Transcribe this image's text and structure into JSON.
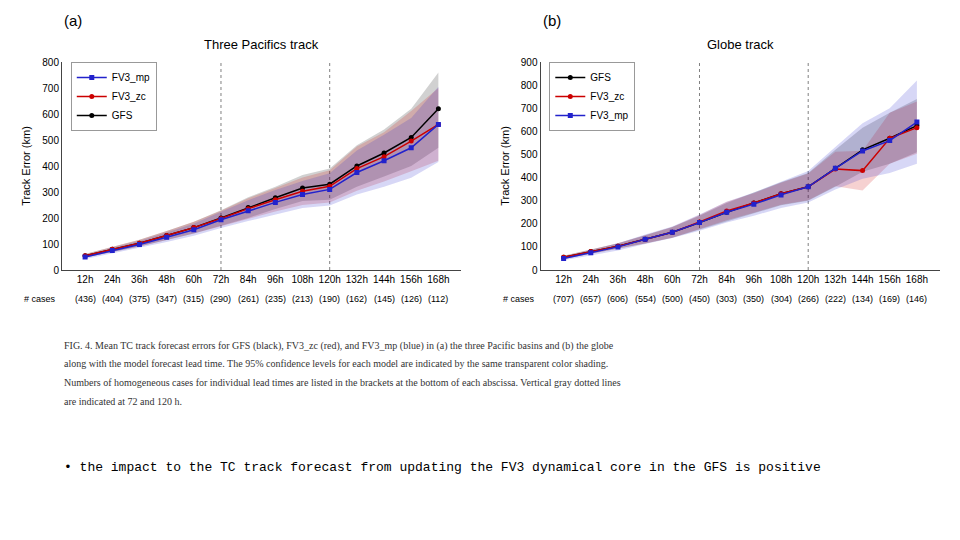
{
  "chart_data": [
    {
      "type": "line",
      "title": "Three Pacifics track",
      "ylabel": "Track Error (km)",
      "annotations": [
        "(a)"
      ],
      "categories": [
        "12h",
        "24h",
        "36h",
        "48h",
        "60h",
        "72h",
        "84h",
        "96h",
        "108h",
        "120h",
        "132h",
        "144h",
        "156h",
        "168h"
      ],
      "cases": {
        "title": "# cases",
        "values": [
          436,
          404,
          375,
          347,
          315,
          290,
          261,
          235,
          213,
          190,
          162,
          145,
          126,
          112
        ],
        "value_labels": [
          "(436)",
          "(404)",
          "(375)",
          "(347)",
          "(315)",
          "(290)",
          "(261)",
          "(235)",
          "(213)",
          "(190)",
          "(162)",
          "(145)",
          "(126)",
          "(112)"
        ]
      },
      "series": [
        {
          "name": "GFS",
          "color": "#000000",
          "marker": "circle",
          "line_style": "solid",
          "values": [
            55,
            80,
            103,
            133,
            163,
            200,
            240,
            278,
            315,
            330,
            400,
            450,
            510,
            620
          ],
          "lower": [
            48,
            70,
            90,
            115,
            140,
            170,
            200,
            235,
            265,
            270,
            320,
            360,
            400,
            470
          ],
          "upper": [
            62,
            90,
            116,
            150,
            186,
            230,
            280,
            320,
            365,
            390,
            480,
            540,
            620,
            760
          ]
        },
        {
          "name": "FV3_zc",
          "color": "#cc0000",
          "marker": "circle",
          "line_style": "solid",
          "values": [
            55,
            80,
            103,
            133,
            163,
            198,
            236,
            270,
            303,
            322,
            390,
            436,
            496,
            560
          ],
          "lower": [
            48,
            70,
            90,
            115,
            140,
            168,
            196,
            225,
            250,
            260,
            305,
            340,
            380,
            420
          ],
          "upper": [
            62,
            90,
            116,
            150,
            186,
            228,
            276,
            315,
            356,
            384,
            475,
            530,
            612,
            700
          ]
        },
        {
          "name": "FV3_mp",
          "color": "#2222cc",
          "marker": "square",
          "line_style": "solid",
          "values": [
            50,
            75,
            98,
            126,
            155,
            193,
            228,
            260,
            290,
            310,
            375,
            420,
            470,
            560
          ],
          "lower": [
            42,
            64,
            84,
            108,
            132,
            162,
            188,
            212,
            238,
            248,
            290,
            320,
            355,
            415
          ],
          "upper": [
            58,
            86,
            112,
            144,
            178,
            224,
            268,
            308,
            342,
            372,
            460,
            520,
            585,
            705
          ]
        }
      ],
      "vlines": [
        "72h",
        "120h"
      ],
      "ylim": [
        0,
        800
      ],
      "yticks": [
        0,
        100,
        200,
        300,
        400,
        500,
        600,
        700,
        800
      ],
      "grid": false,
      "legend": "upper left"
    },
    {
      "type": "line",
      "title": "Globe track",
      "ylabel": "Track Error (km)",
      "annotations": [
        "(b)"
      ],
      "categories": [
        "12h",
        "24h",
        "36h",
        "48h",
        "60h",
        "72h",
        "84h",
        "96h",
        "108h",
        "120h",
        "132h",
        "144h",
        "156h",
        "168h"
      ],
      "cases": {
        "title": "# cases",
        "values": [
          707,
          657,
          606,
          554,
          500,
          450,
          303,
          350,
          304,
          266,
          222,
          134,
          169,
          146
        ],
        "value_labels": [
          "(707)",
          "(657)",
          "(606)",
          "(554)",
          "(500)",
          "(450)",
          "(303)",
          "(350)",
          "(304)",
          "(266)",
          "(222)",
          "(134)",
          "(169)",
          "(146)"
        ]
      },
      "series": [
        {
          "name": "GFS",
          "color": "#000000",
          "marker": "circle",
          "line_style": "solid",
          "values": [
            55,
            80,
            103,
            133,
            163,
            205,
            250,
            290,
            330,
            360,
            440,
            520,
            570,
            625
          ],
          "lower": [
            48,
            70,
            90,
            115,
            140,
            175,
            210,
            245,
            280,
            300,
            360,
            425,
            460,
            510
          ],
          "upper": [
            62,
            90,
            116,
            150,
            186,
            235,
            290,
            335,
            380,
            420,
            520,
            615,
            680,
            740
          ]
        },
        {
          "name": "FV3_zc",
          "color": "#cc0000",
          "marker": "circle",
          "line_style": "solid",
          "values": [
            55,
            80,
            103,
            133,
            163,
            208,
            255,
            290,
            330,
            360,
            437,
            430,
            570,
            616
          ],
          "lower": [
            48,
            70,
            90,
            115,
            140,
            178,
            215,
            248,
            282,
            302,
            362,
            344,
            460,
            503
          ],
          "upper": [
            62,
            90,
            116,
            150,
            186,
            238,
            295,
            332,
            378,
            418,
            512,
            516,
            680,
            729
          ]
        },
        {
          "name": "FV3_mp",
          "color": "#2222cc",
          "marker": "square",
          "line_style": "solid",
          "values": [
            50,
            75,
            100,
            133,
            163,
            205,
            250,
            285,
            325,
            360,
            440,
            515,
            560,
            640
          ],
          "lower": [
            42,
            64,
            84,
            112,
            138,
            170,
            205,
            235,
            268,
            292,
            348,
            395,
            420,
            460
          ],
          "upper": [
            58,
            86,
            116,
            154,
            188,
            240,
            295,
            335,
            382,
            428,
            532,
            635,
            700,
            820
          ]
        }
      ],
      "vlines": [
        "72h",
        "120h"
      ],
      "ylim": [
        0,
        900
      ],
      "yticks": [
        0,
        100,
        200,
        300,
        400,
        500,
        600,
        700,
        800,
        900
      ],
      "grid": false,
      "legend": "upper left"
    }
  ],
  "caption": [
    "FIG. 4. Mean TC track forecast errors for GFS (black), FV3_zc (red), and FV3_mp (blue) in (a) the three Pacific basins and (b) the globe",
    "along with the model forecast lead time. The 95% confidence levels for each model are indicated by the same transparent color shading.",
    "Numbers of homogeneous cases for individual lead times are listed in the brackets at the bottom of each abscissa. Vertical gray dotted lines",
    "are indicated at 72 and 120 h."
  ],
  "notes": [
    "• the impact to the TC track forecast from updating the FV3 dynamical core in the GFS is positive"
  ]
}
